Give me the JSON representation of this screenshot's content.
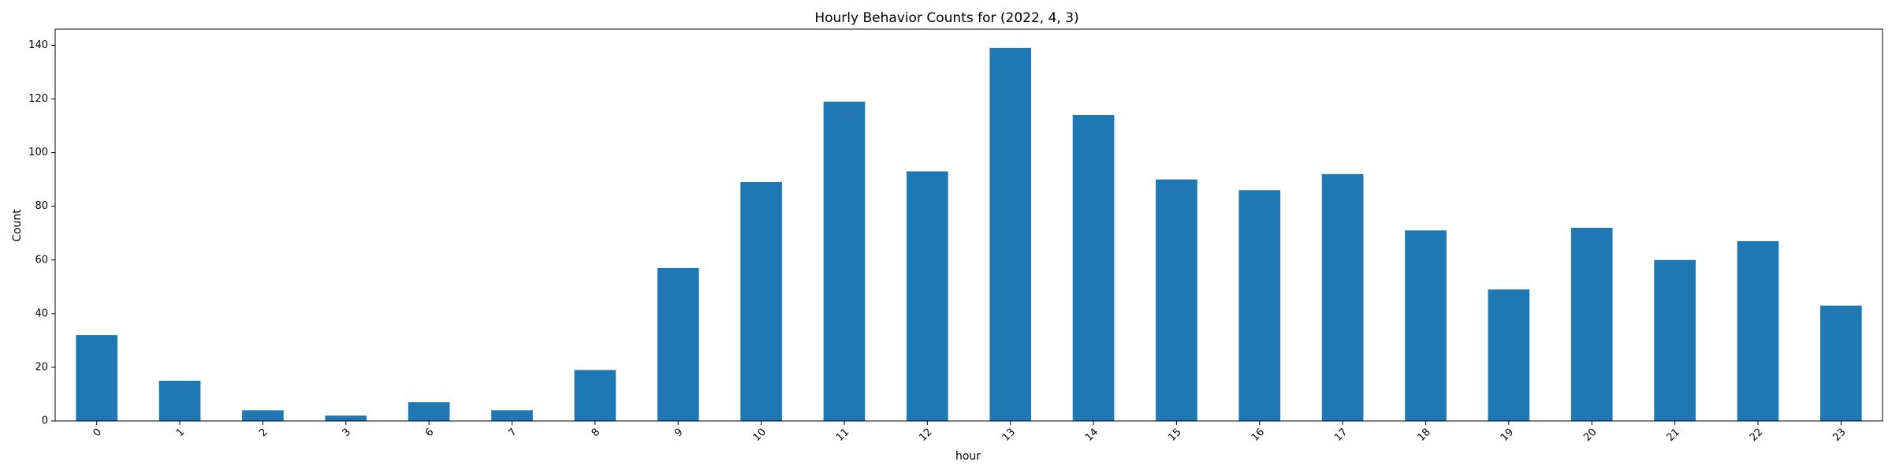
{
  "chart_data": {
    "type": "bar",
    "title": "Hourly Behavior Counts for (2022, 4, 3)",
    "xlabel": "hour",
    "ylabel": "Count",
    "categories": [
      "0",
      "1",
      "2",
      "3",
      "6",
      "7",
      "8",
      "9",
      "10",
      "11",
      "12",
      "13",
      "14",
      "15",
      "16",
      "17",
      "18",
      "19",
      "20",
      "21",
      "22",
      "23"
    ],
    "values": [
      32,
      15,
      4,
      2,
      7,
      4,
      19,
      57,
      89,
      119,
      93,
      139,
      114,
      90,
      86,
      92,
      71,
      49,
      72,
      60,
      67,
      43
    ],
    "ylim": [
      0,
      146
    ],
    "yticks": [
      0,
      20,
      40,
      60,
      80,
      100,
      120,
      140
    ],
    "bar_color": "#1f77b4",
    "grid": false,
    "legend": "none"
  }
}
